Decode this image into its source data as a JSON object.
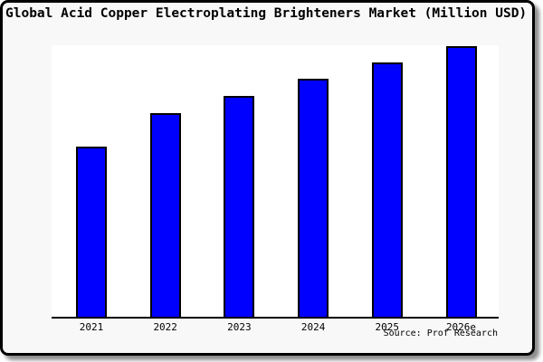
{
  "title": "Global Acid Copper Electroplating Brighteners Market (Million USD)",
  "source": "Source: Prof Research",
  "chart_data": {
    "type": "bar",
    "title": "Global Acid Copper Electroplating Brighteners Market (Million USD)",
    "categories": [
      "2021",
      "2022",
      "2023",
      "2024",
      "2025",
      "2026e"
    ],
    "values": [
      63.1,
      75.4,
      81.7,
      88.0,
      94.0,
      100.0
    ],
    "units": "relative index (2026e = 100); y-axis has no tick labels in figure",
    "xlabel": "",
    "ylabel": "",
    "ylim": [
      0,
      100
    ],
    "grid": false,
    "legend": false,
    "bar_color": "#0000ff",
    "bar_border_color": "#000000",
    "plot_background": "#ffffff",
    "figure_background": "#f8f8f8"
  }
}
